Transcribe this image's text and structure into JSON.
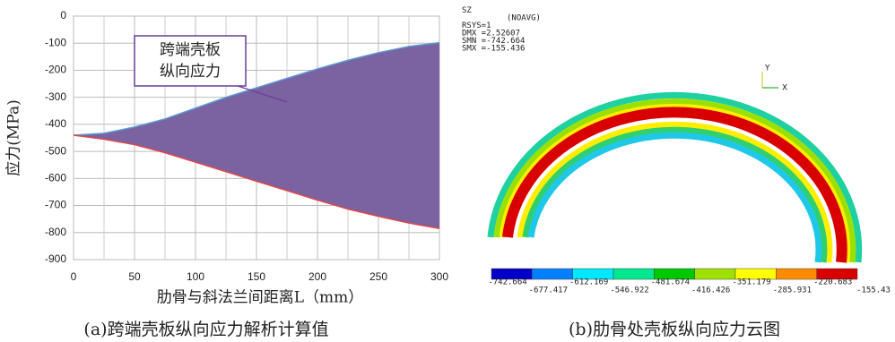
{
  "chart_data": [
    {
      "type": "range-area",
      "y_label": "应力(MPa)",
      "x_label": "肋骨与斜法兰间距离L（mm）",
      "annotation": [
        "跨端壳板",
        "纵向应力"
      ],
      "x": [
        0,
        25,
        50,
        75,
        100,
        125,
        150,
        175,
        200,
        225,
        250,
        275,
        300
      ],
      "series": [
        {
          "color": "#5b9bd5",
          "values": [
            -440,
            -433,
            -410,
            -380,
            -340,
            -300,
            -265,
            -230,
            -195,
            -163,
            -135,
            -112,
            -98
          ]
        },
        {
          "color": "#e04848",
          "values": [
            -440,
            -455,
            -475,
            -505,
            -540,
            -575,
            -610,
            -645,
            -680,
            -713,
            -740,
            -765,
            -785
          ]
        }
      ],
      "fill": "#7b62a0",
      "xlim": [
        0,
        300
      ],
      "xticks": [
        0,
        50,
        100,
        150,
        200,
        250,
        300
      ],
      "ylim": [
        -900,
        0
      ],
      "yticks": [
        0,
        -100,
        -200,
        -300,
        -400,
        -500,
        -600,
        -700,
        -800,
        -900
      ],
      "grid": true
    },
    {
      "type": "contour",
      "header": [
        "SZ",
        "(NOAVG)",
        "RSYS=1",
        "DMX =2.52607",
        "SMN =-742.664",
        "SMX =-155.436"
      ],
      "triad": [
        "Y",
        "X"
      ],
      "levels": [
        -742.664,
        -677.417,
        -612.169,
        -546.922,
        -481.674,
        -416.426,
        -351.179,
        -285.931,
        -220.683,
        -155.43
      ],
      "colors": [
        "#0000c8",
        "#0080ff",
        "#00e8ff",
        "#00e890",
        "#00c800",
        "#a0e000",
        "#ffff00",
        "#ff8c00",
        "#d80000"
      ]
    }
  ],
  "captions": [
    "(a)跨端壳板纵向应力解析计算值",
    "(b)肋骨处壳板纵向应力云图"
  ]
}
